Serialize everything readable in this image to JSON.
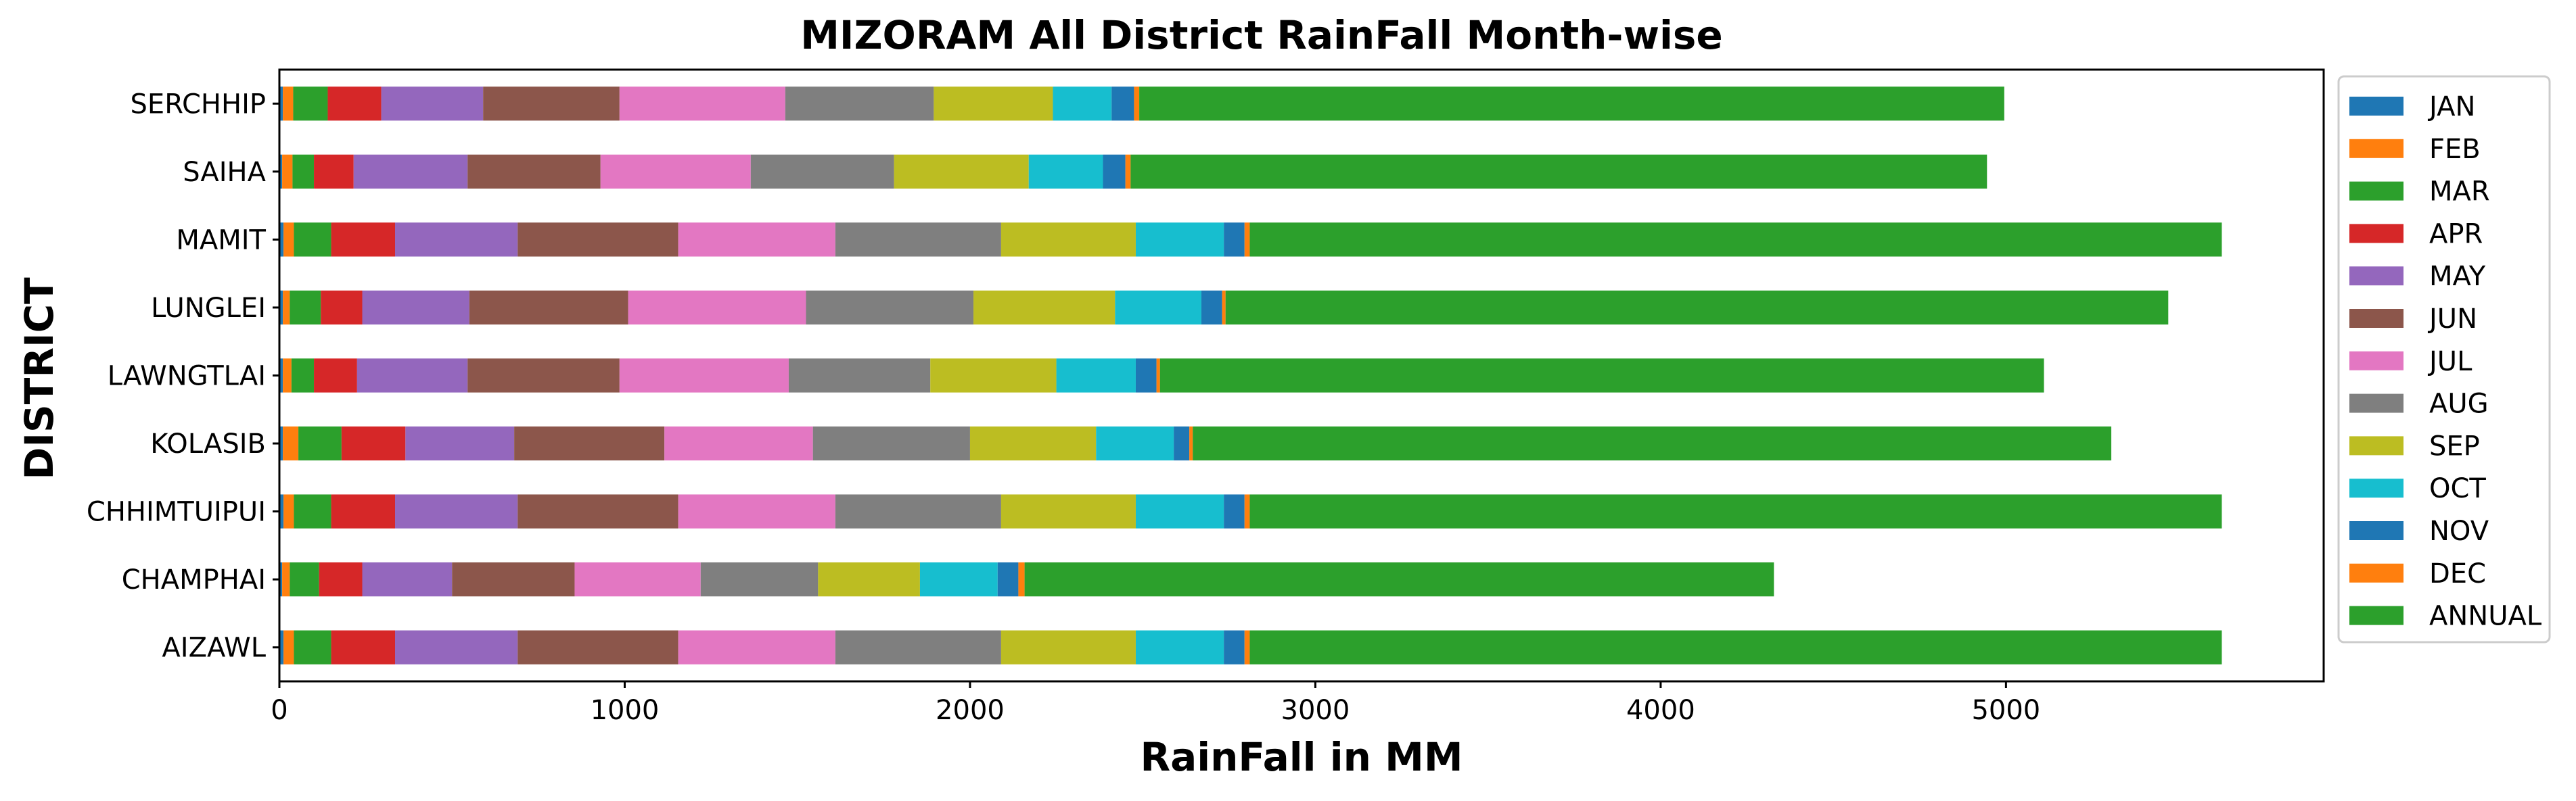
{
  "chart_data": {
    "type": "bar",
    "orientation": "horizontal",
    "stacked": true,
    "title": "MIZORAM All District RainFall Month-wise",
    "xlabel": "RainFall in MM",
    "ylabel": "DISTRICT",
    "xlim": [
      0,
      5920
    ],
    "xticks": [
      0,
      1000,
      2000,
      3000,
      4000,
      5000
    ],
    "grid": false,
    "legend_position": "outside-right",
    "categories": [
      "AIZAWL",
      "CHAMPHAI",
      "CHHIMTUIPUI",
      "KOLASIB",
      "LAWNGTLAI",
      "LUNGLEI",
      "MAMIT",
      "SAIHA",
      "SERCHHIP"
    ],
    "series": [
      {
        "name": "JAN",
        "color": "#1f77b4",
        "values": [
          12,
          8,
          12,
          10,
          10,
          10,
          12,
          8,
          10
        ]
      },
      {
        "name": "FEB",
        "color": "#ff7f0e",
        "values": [
          30,
          22,
          30,
          45,
          25,
          20,
          30,
          30,
          30
        ]
      },
      {
        "name": "MAR",
        "color": "#2ca02c",
        "values": [
          108,
          85,
          108,
          125,
          65,
          90,
          108,
          62,
          100
        ]
      },
      {
        "name": "APR",
        "color": "#d62728",
        "values": [
          185,
          125,
          185,
          185,
          125,
          120,
          185,
          115,
          155
        ]
      },
      {
        "name": "MAY",
        "color": "#9467bd",
        "values": [
          355,
          260,
          355,
          315,
          320,
          310,
          355,
          330,
          295
        ]
      },
      {
        "name": "JUN",
        "color": "#8c564b",
        "values": [
          465,
          355,
          465,
          435,
          440,
          460,
          465,
          385,
          395
        ]
      },
      {
        "name": "JUL",
        "color": "#e377c2",
        "values": [
          455,
          365,
          455,
          430,
          490,
          515,
          455,
          435,
          480
        ]
      },
      {
        "name": "AUG",
        "color": "#7f7f7f",
        "values": [
          480,
          340,
          480,
          455,
          410,
          485,
          480,
          415,
          430
        ]
      },
      {
        "name": "SEP",
        "color": "#bcbd22",
        "values": [
          390,
          295,
          390,
          365,
          365,
          410,
          390,
          390,
          345
        ]
      },
      {
        "name": "OCT",
        "color": "#17becf",
        "values": [
          255,
          225,
          255,
          225,
          230,
          250,
          255,
          215,
          170
        ]
      },
      {
        "name": "NOV",
        "color": "#1f77b4",
        "values": [
          60,
          60,
          60,
          45,
          60,
          60,
          60,
          65,
          65
        ]
      },
      {
        "name": "DEC",
        "color": "#ff7f0e",
        "values": [
          15,
          18,
          15,
          10,
          10,
          10,
          15,
          15,
          15
        ]
      },
      {
        "name": "ANNUAL",
        "color": "#2ca02c",
        "values": [
          2815,
          2170,
          2815,
          2660,
          2560,
          2730,
          2815,
          2480,
          2505
        ]
      }
    ]
  }
}
